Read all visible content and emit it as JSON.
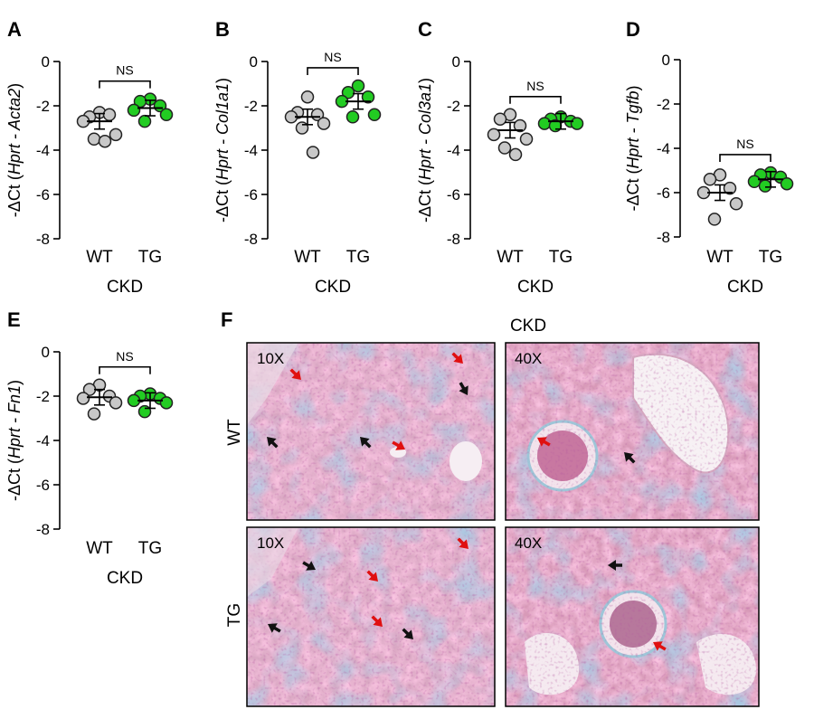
{
  "colors": {
    "wt_fill": "#c8c8c8",
    "tg_fill": "#22cc22",
    "marker_stroke": "#222222",
    "arrow_red": "#e01010",
    "arrow_black": "#111111"
  },
  "chart_data": [
    {
      "type": "scatter",
      "panel": "A",
      "gene": "Acta2",
      "ylabel_prefix": "-ΔCt (",
      "ylabel_italic": "Hprt - Acta2",
      "ylabel_suffix": ")",
      "yticks": [
        "0",
        "-2",
        "-4",
        "-6",
        "-8"
      ],
      "ylim": [
        -8,
        0
      ],
      "categories": [
        "WT",
        "TG"
      ],
      "xlabel": "CKD",
      "sig": "NS",
      "series": [
        {
          "category": "WT",
          "values": [
            -2.3,
            -2.5,
            -2.4,
            -2.7,
            -3.3,
            -3.5,
            -3.6
          ],
          "mean": -2.7
        },
        {
          "category": "TG",
          "values": [
            -1.7,
            -1.8,
            -2.0,
            -2.2,
            -2.4,
            -2.7
          ],
          "mean": -2.1
        }
      ]
    },
    {
      "type": "scatter",
      "panel": "B",
      "gene": "Col1a1",
      "ylabel_prefix": "-ΔCt (",
      "ylabel_italic": "Hprt - Col1a1",
      "ylabel_suffix": ")",
      "yticks": [
        "0",
        "-2",
        "-4",
        "-6",
        "-8"
      ],
      "ylim": [
        -8,
        0
      ],
      "categories": [
        "WT",
        "TG"
      ],
      "xlabel": "CKD",
      "sig": "NS",
      "series": [
        {
          "category": "WT",
          "values": [
            -1.6,
            -2.3,
            -2.4,
            -2.5,
            -2.8,
            -3.0,
            -4.1
          ],
          "mean": -2.5
        },
        {
          "category": "TG",
          "values": [
            -1.1,
            -1.4,
            -1.6,
            -1.8,
            -2.4,
            -2.5
          ],
          "mean": -1.8
        }
      ]
    },
    {
      "type": "scatter",
      "panel": "C",
      "gene": "Col3a1",
      "ylabel_prefix": "-ΔCt (",
      "ylabel_italic": "Hprt - Col3a1",
      "ylabel_suffix": ")",
      "yticks": [
        "0",
        "-2",
        "-4",
        "-6",
        "-8"
      ],
      "ylim": [
        -8,
        0
      ],
      "categories": [
        "WT",
        "TG"
      ],
      "xlabel": "CKD",
      "sig": "NS",
      "series": [
        {
          "category": "WT",
          "values": [
            -2.4,
            -2.6,
            -2.9,
            -3.3,
            -3.5,
            -3.9,
            -4.2
          ],
          "mean": -3.1
        },
        {
          "category": "TG",
          "values": [
            -2.5,
            -2.6,
            -2.7,
            -2.8,
            -2.8,
            -2.9
          ],
          "mean": -2.7
        }
      ]
    },
    {
      "type": "scatter",
      "panel": "D",
      "gene": "Tgfb",
      "ylabel_prefix": "-ΔCt (",
      "ylabel_italic": "Hprt - Tgfb",
      "ylabel_suffix": ")",
      "yticks": [
        "0",
        "-2",
        "-4",
        "-6",
        "-8"
      ],
      "ylim": [
        -8,
        0
      ],
      "categories": [
        "WT",
        "TG"
      ],
      "xlabel": "CKD",
      "sig": "NS",
      "series": [
        {
          "category": "WT",
          "values": [
            -5.2,
            -5.4,
            -5.8,
            -6.0,
            -6.5,
            -7.2
          ],
          "mean": -6.0
        },
        {
          "category": "TG",
          "values": [
            -5.1,
            -5.2,
            -5.3,
            -5.5,
            -5.6,
            -5.7
          ],
          "mean": -5.4
        }
      ]
    },
    {
      "type": "scatter",
      "panel": "E",
      "gene": "Fn1",
      "ylabel_prefix": "-ΔCt (",
      "ylabel_italic": "Hprt - Fn1",
      "ylabel_suffix": ")",
      "yticks": [
        "0",
        "-2",
        "-4",
        "-6",
        "-8"
      ],
      "ylim": [
        -8,
        0
      ],
      "categories": [
        "WT",
        "TG"
      ],
      "xlabel": "CKD",
      "sig": "NS",
      "series": [
        {
          "category": "WT",
          "values": [
            -1.5,
            -1.7,
            -2.0,
            -2.1,
            -2.3,
            -2.8
          ],
          "mean": -2.05
        },
        {
          "category": "TG",
          "values": [
            -1.9,
            -2.0,
            -2.1,
            -2.2,
            -2.3,
            -2.7
          ],
          "mean": -2.2
        }
      ]
    }
  ],
  "histology": {
    "panel": "F",
    "title": "CKD",
    "rows": [
      "WT",
      "TG"
    ],
    "magnifications": [
      "10X",
      "40X",
      "10X",
      "40X"
    ]
  }
}
